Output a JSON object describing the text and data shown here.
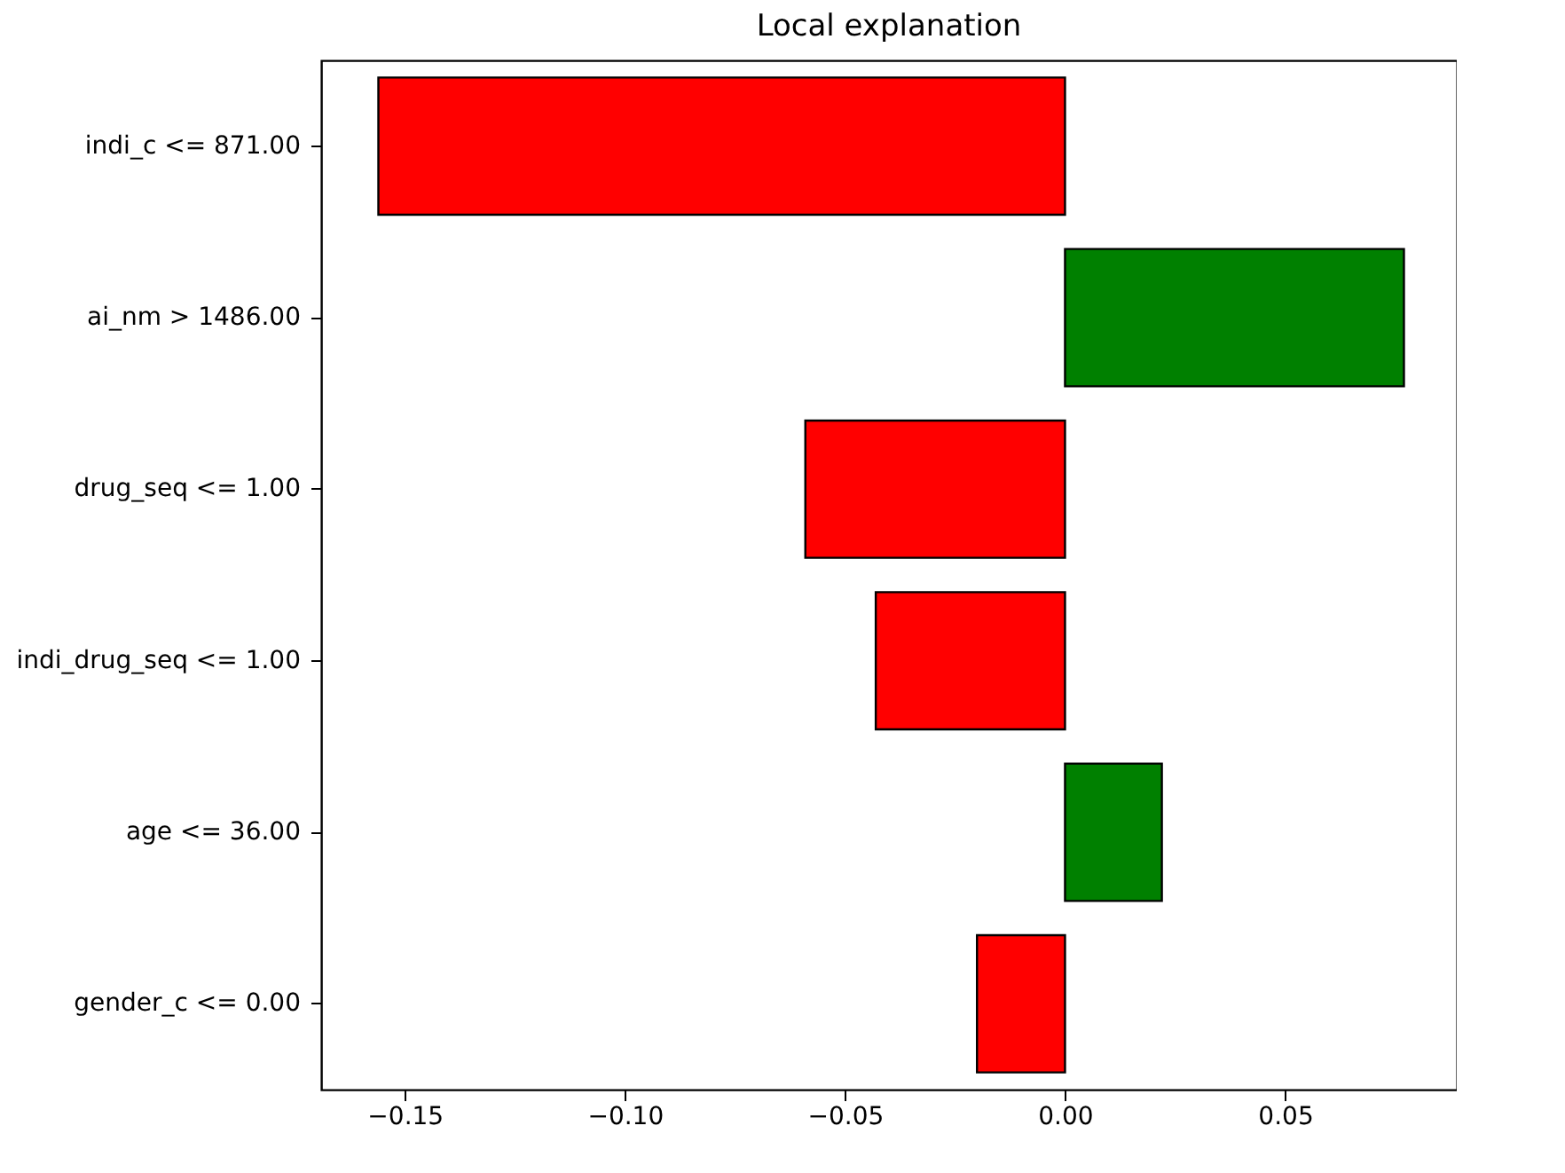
{
  "chart_data": {
    "type": "bar",
    "orientation": "horizontal",
    "title": "Local explanation",
    "categories": [
      "indi_c <= 871.00",
      "ai_nm > 1486.00",
      "drug_seq <= 1.00",
      "indi_drug_seq <= 1.00",
      "age <= 36.00",
      "gender_c <= 0.00"
    ],
    "values": [
      -0.156,
      0.077,
      -0.059,
      -0.043,
      0.022,
      -0.02
    ],
    "colors": [
      "#ff0000",
      "#008000",
      "#ff0000",
      "#ff0000",
      "#008000",
      "#ff0000"
    ],
    "xlim": [
      -0.169,
      0.089
    ],
    "xticks": [
      {
        "value": -0.15,
        "label": "−0.15"
      },
      {
        "value": -0.1,
        "label": "−0.10"
      },
      {
        "value": -0.05,
        "label": "−0.05"
      },
      {
        "value": 0,
        "label": "0.00"
      },
      {
        "value": 0.05,
        "label": "0.05"
      }
    ],
    "grid": false
  }
}
